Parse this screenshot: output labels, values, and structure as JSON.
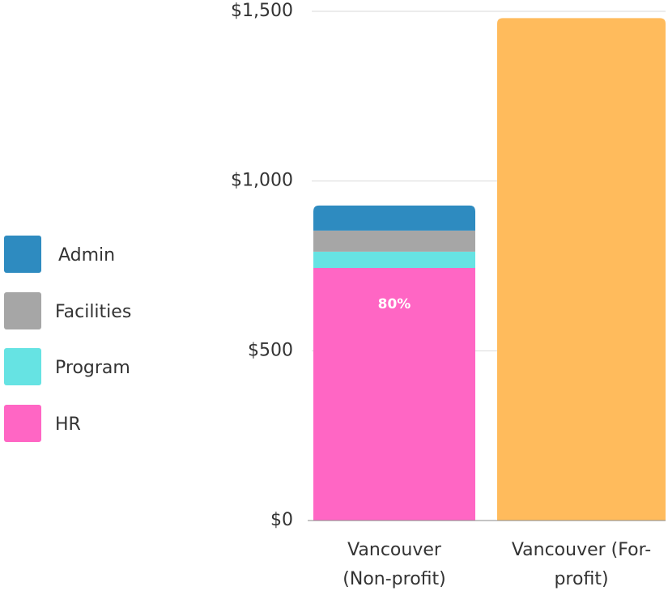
{
  "chart_data": {
    "type": "stacked_bar",
    "categories": [
      "Vancouver (Non-profit)",
      "Vancouver (For-profit)"
    ],
    "series": [
      {
        "name": "HR",
        "color": "#ff66c4",
        "values": [
          744,
          null
        ]
      },
      {
        "name": "Program",
        "color": "#66e3e3",
        "values": [
          48,
          null
        ]
      },
      {
        "name": "Facilities",
        "color": "#a6a6a6",
        "values": [
          62,
          null
        ]
      },
      {
        "name": "Admin",
        "color": "#2e8bc0",
        "values": [
          74,
          null
        ]
      },
      {
        "color": "#ffbb5c",
        "values": [
          null,
          1480
        ]
      }
    ],
    "annotations": [
      "80%"
    ],
    "ylim": [
      0,
      1500
    ],
    "yticks": [
      {
        "value": 0,
        "label": "$0"
      },
      {
        "value": 500,
        "label": "$500"
      },
      {
        "value": 1000,
        "label": "$1,000"
      },
      {
        "value": 1500,
        "label": "$1,500"
      }
    ],
    "grid": true,
    "legend": "left"
  }
}
